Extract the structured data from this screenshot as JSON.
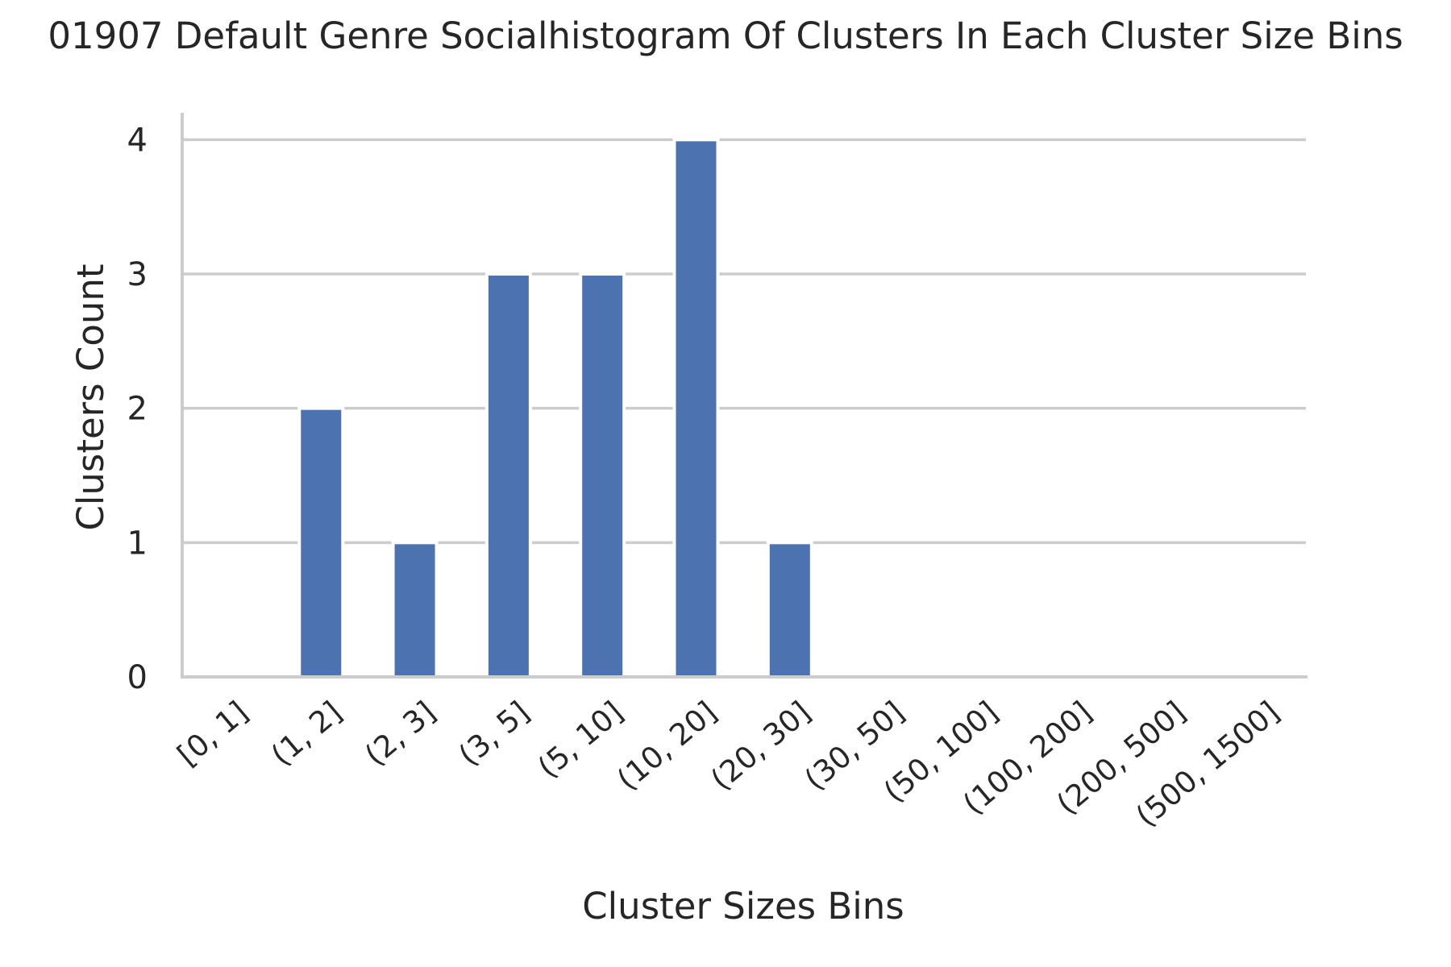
{
  "chart_data": {
    "type": "bar",
    "title": "01907 Default Genre Socialhistogram Of Clusters In Each Cluster Size Bins",
    "xlabel": "Cluster Sizes Bins",
    "ylabel": "Clusters Count",
    "categories": [
      "[0, 1]",
      "(1, 2]",
      "(2, 3]",
      "(3, 5]",
      "(5, 10]",
      "(10, 20]",
      "(20, 30]",
      "(30, 50]",
      "(50, 100]",
      "(100, 200]",
      "(200, 500]",
      "(500, 1500]"
    ],
    "values": [
      0,
      2,
      1,
      3,
      3,
      4,
      1,
      0,
      0,
      0,
      0,
      0
    ],
    "yticks": [
      "0",
      "1",
      "2",
      "3",
      "4"
    ],
    "ylim": [
      0,
      4.2
    ],
    "grid": true,
    "colors": {
      "bar": "#4c72b0",
      "grid": "#cccccc",
      "text": "#262626"
    }
  }
}
